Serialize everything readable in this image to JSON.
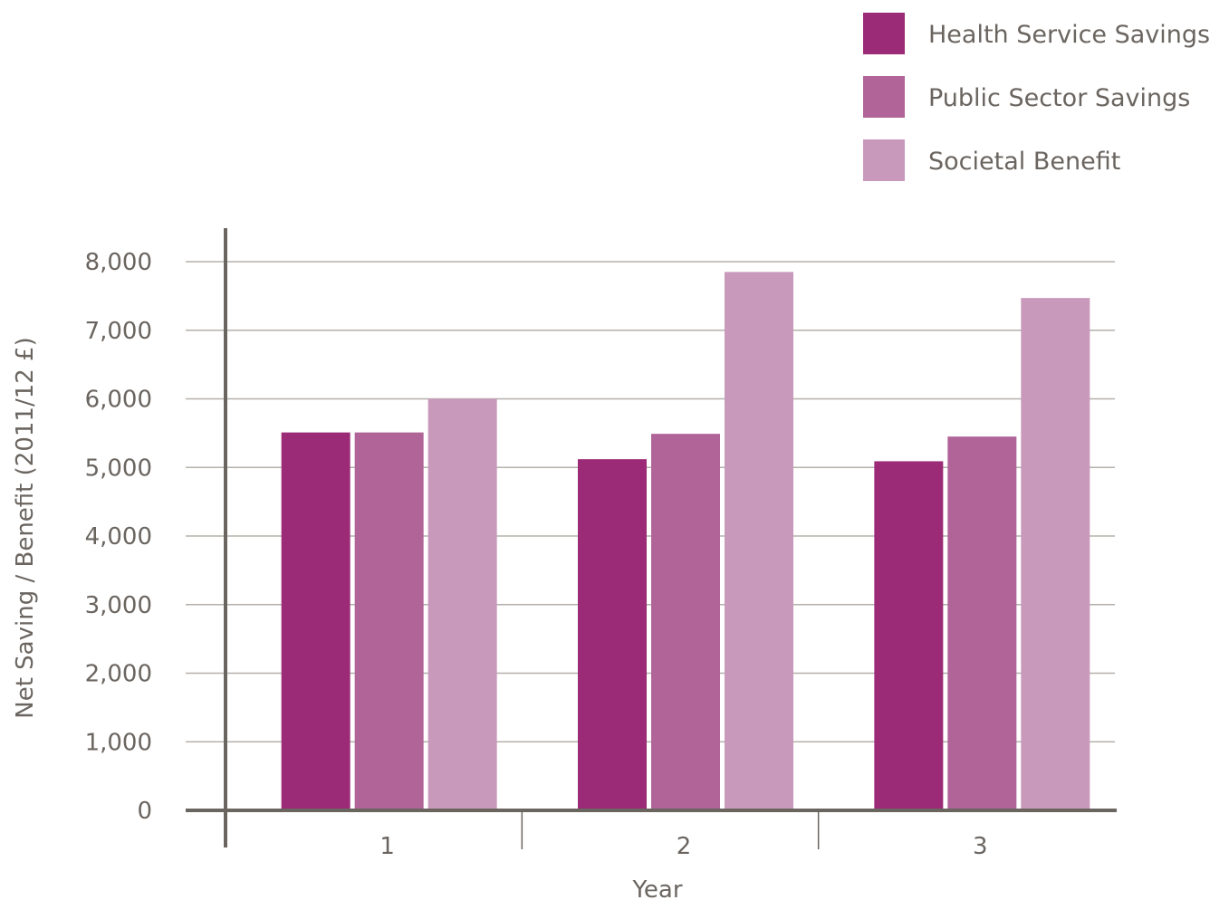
{
  "chart_data": {
    "type": "bar",
    "title": "",
    "xlabel": "Year",
    "ylabel": "Net Saving / Benefit (2011/12 £)",
    "categories": [
      "1",
      "2",
      "3"
    ],
    "series": [
      {
        "name": "Health Service Savings",
        "color": "#9c2b77",
        "values": [
          5510,
          5120,
          5090
        ]
      },
      {
        "name": "Public Sector Savings",
        "color": "#b06498",
        "values": [
          5510,
          5490,
          5450
        ]
      },
      {
        "name": "Societal Benefit",
        "color": "#c999bc",
        "values": [
          6000,
          7850,
          7470
        ]
      }
    ],
    "ylim": [
      0,
      8000
    ],
    "yticks": [
      0,
      1000,
      2000,
      3000,
      4000,
      5000,
      6000,
      7000,
      8000
    ],
    "ytick_labels": [
      "0",
      "1,000",
      "2,000",
      "3,000",
      "4,000",
      "5,000",
      "6,000",
      "7,000",
      "8,000"
    ],
    "grid": true,
    "legend_position": "top-right",
    "axis_color": "#6b6560",
    "grid_color": "#b5b0ab"
  }
}
